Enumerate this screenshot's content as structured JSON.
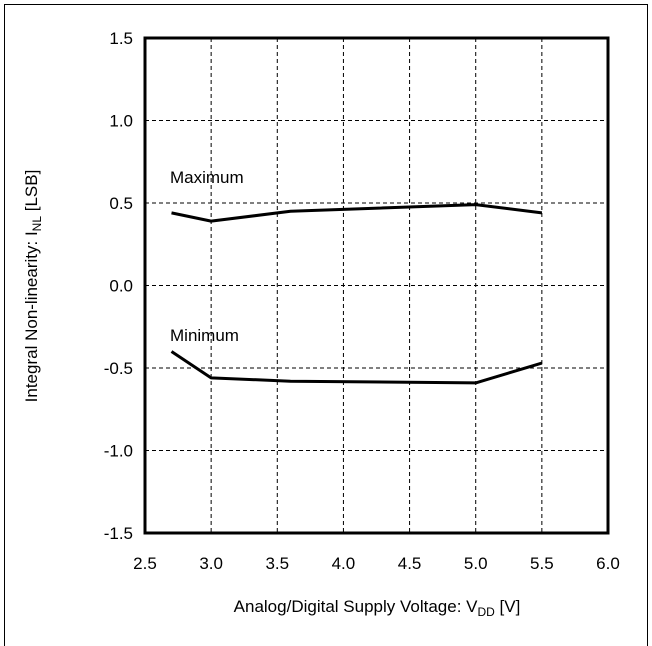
{
  "chart_data": {
    "type": "line",
    "title": "",
    "xlabel": {
      "prefix": "Analog/Digital Supply Voltage: V",
      "subscript": "DD",
      "suffix": " [V]"
    },
    "ylabel": {
      "prefix": "Integral Non-linearity: I",
      "subscript": "NL",
      "suffix": " [LSB]"
    },
    "xlim": [
      2.5,
      6.0
    ],
    "ylim": [
      -1.5,
      1.5
    ],
    "x_ticks": [
      "2.5",
      "3.0",
      "3.5",
      "4.0",
      "4.5",
      "5.0",
      "5.5",
      "6.0"
    ],
    "y_ticks": [
      "1.5",
      "1.0",
      "0.5",
      "0.0",
      "-0.5",
      "-1.0",
      "-1.5"
    ],
    "grid": true,
    "series": [
      {
        "name": "Maximum",
        "x": [
          2.7,
          3.0,
          3.6,
          5.0,
          5.5
        ],
        "y": [
          0.44,
          0.39,
          0.45,
          0.49,
          0.44
        ]
      },
      {
        "name": "Minimum",
        "x": [
          2.7,
          3.0,
          3.6,
          5.0,
          5.5
        ],
        "y": [
          -0.4,
          -0.56,
          -0.58,
          -0.59,
          -0.47
        ]
      }
    ],
    "line_color": "#000000",
    "grid_color": "#000000"
  }
}
